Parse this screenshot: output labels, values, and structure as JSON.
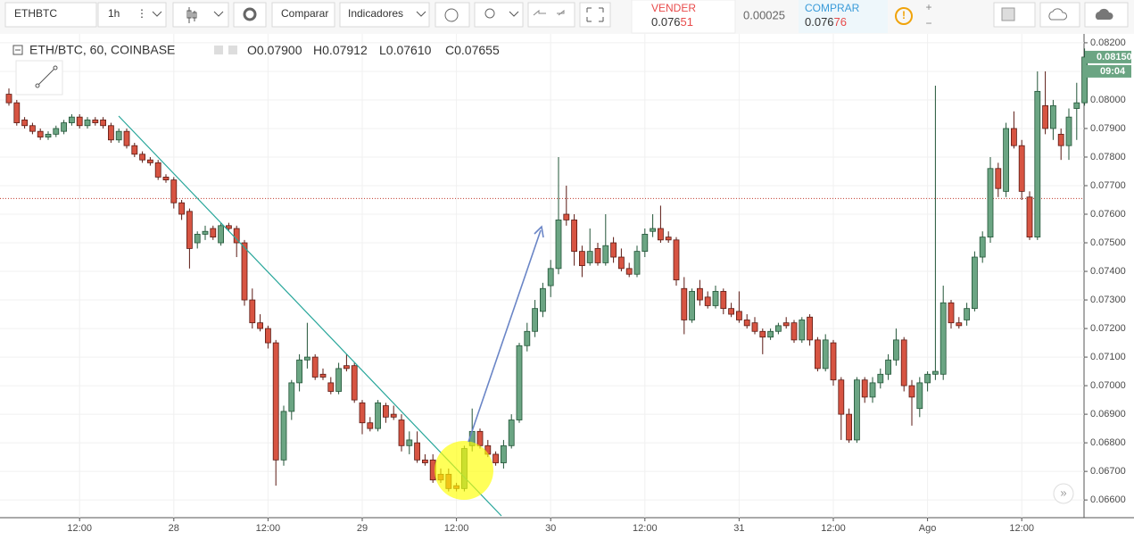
{
  "toolbar": {
    "symbol": "ETHBTC",
    "interval": "1h",
    "compare": "Comparar",
    "indicators": "Indicadores",
    "sell_label": "VENDER",
    "sell_price_main": "0.076",
    "sell_price_tail": "51",
    "spread": "0.00025",
    "buy_label": "COMPRAR",
    "buy_price_main": "0.076",
    "buy_price_tail": "76"
  },
  "legend": {
    "title": "ETH/BTC, 60, COINBASE",
    "items": [
      {
        "key": "O",
        "value": "0.07900"
      },
      {
        "key": "H",
        "value": "0.07912"
      },
      {
        "key": "L",
        "value": "0.07610"
      },
      {
        "key": "C",
        "value": "0.07655"
      }
    ]
  },
  "chart_data": {
    "type": "candlestick",
    "up_color": "#6ba583",
    "down_color": "#d75442",
    "ylim": [
      0.06538,
      0.08231
    ],
    "yticks": [
      {
        "value": 0.066,
        "label": "0.06600"
      },
      {
        "value": 0.067,
        "label": "0.06700"
      },
      {
        "value": 0.068,
        "label": "0.06800"
      },
      {
        "value": 0.069,
        "label": "0.06900"
      },
      {
        "value": 0.07,
        "label": "0.07000"
      },
      {
        "value": 0.071,
        "label": "0.07100"
      },
      {
        "value": 0.072,
        "label": "0.07200"
      },
      {
        "value": 0.073,
        "label": "0.07300"
      },
      {
        "value": 0.074,
        "label": "0.07400"
      },
      {
        "value": 0.075,
        "label": "0.07500"
      },
      {
        "value": 0.076,
        "label": "0.07600"
      },
      {
        "value": 0.077,
        "label": "0.07700"
      },
      {
        "value": 0.078,
        "label": "0.07800"
      },
      {
        "value": 0.079,
        "label": "0.07900"
      },
      {
        "value": 0.08,
        "label": "0.08000"
      },
      {
        "value": 0.081,
        "label": "0.08100"
      },
      {
        "value": 0.082,
        "label": "0.08200"
      }
    ],
    "xticks": [
      {
        "value": 9,
        "label": "12:00"
      },
      {
        "value": 21,
        "label": "28"
      },
      {
        "value": 33,
        "label": "12:00"
      },
      {
        "value": 45,
        "label": "29"
      },
      {
        "value": 57,
        "label": "12:00"
      },
      {
        "value": 69,
        "label": "30"
      },
      {
        "value": 81,
        "label": "12:00"
      },
      {
        "value": 93,
        "label": "31"
      },
      {
        "value": 105,
        "label": "12:00"
      },
      {
        "value": 117,
        "label": "Ago"
      },
      {
        "value": 129,
        "label": "12:00"
      }
    ],
    "price_line": 0.07655,
    "last_price": 0.0815,
    "last_price_label": "0.08150",
    "countdown": "09:04",
    "candles": [
      [
        0.0802,
        0.0804,
        0.0798,
        0.0799
      ],
      [
        0.0799,
        0.08,
        0.0791,
        0.0792
      ],
      [
        0.0793,
        0.0794,
        0.079,
        0.0791
      ],
      [
        0.0791,
        0.0792,
        0.0788,
        0.0789
      ],
      [
        0.0789,
        0.079,
        0.0786,
        0.0787
      ],
      [
        0.0787,
        0.0789,
        0.0786,
        0.0788
      ],
      [
        0.0788,
        0.0791,
        0.0787,
        0.079
      ],
      [
        0.0789,
        0.0793,
        0.0788,
        0.0792
      ],
      [
        0.0792,
        0.0795,
        0.0791,
        0.0794
      ],
      [
        0.0794,
        0.0795,
        0.079,
        0.0791
      ],
      [
        0.0791,
        0.0794,
        0.079,
        0.0793
      ],
      [
        0.0793,
        0.0794,
        0.0791,
        0.0792
      ],
      [
        0.0793,
        0.0794,
        0.079,
        0.0791
      ],
      [
        0.0791,
        0.0792,
        0.0785,
        0.0786
      ],
      [
        0.0786,
        0.079,
        0.0785,
        0.0789
      ],
      [
        0.0789,
        0.079,
        0.0783,
        0.0784
      ],
      [
        0.0784,
        0.0785,
        0.078,
        0.0781
      ],
      [
        0.0781,
        0.0782,
        0.0778,
        0.0779
      ],
      [
        0.0779,
        0.078,
        0.0777,
        0.0778
      ],
      [
        0.0778,
        0.0779,
        0.0772,
        0.0773
      ],
      [
        0.0773,
        0.0774,
        0.0771,
        0.0772
      ],
      [
        0.0772,
        0.0773,
        0.0762,
        0.0764
      ],
      [
        0.0764,
        0.0765,
        0.0758,
        0.076
      ],
      [
        0.0761,
        0.0762,
        0.0741,
        0.0748
      ],
      [
        0.075,
        0.0754,
        0.0748,
        0.0753
      ],
      [
        0.0753,
        0.0756,
        0.0751,
        0.0754
      ],
      [
        0.0755,
        0.0756,
        0.0751,
        0.0752
      ],
      [
        0.075,
        0.0757,
        0.0749,
        0.0756
      ],
      [
        0.0756,
        0.0757,
        0.0754,
        0.0755
      ],
      [
        0.0755,
        0.0756,
        0.0745,
        0.075
      ],
      [
        0.075,
        0.0751,
        0.0728,
        0.073
      ],
      [
        0.073,
        0.0734,
        0.072,
        0.0722
      ],
      [
        0.0722,
        0.0725,
        0.0719,
        0.072
      ],
      [
        0.072,
        0.0721,
        0.0713,
        0.0715
      ],
      [
        0.0715,
        0.0716,
        0.0665,
        0.0674
      ],
      [
        0.0674,
        0.0693,
        0.0672,
        0.0691
      ],
      [
        0.0691,
        0.0702,
        0.0688,
        0.0701
      ],
      [
        0.0701,
        0.0711,
        0.0698,
        0.0709
      ],
      [
        0.0709,
        0.0722,
        0.0706,
        0.071
      ],
      [
        0.071,
        0.0711,
        0.0702,
        0.0703
      ],
      [
        0.0704,
        0.0706,
        0.0702,
        0.0703
      ],
      [
        0.0701,
        0.0703,
        0.0697,
        0.0698
      ],
      [
        0.0698,
        0.0708,
        0.0697,
        0.0706
      ],
      [
        0.0707,
        0.0711,
        0.0705,
        0.0706
      ],
      [
        0.0707,
        0.0708,
        0.0694,
        0.0695
      ],
      [
        0.0694,
        0.0695,
        0.0683,
        0.0687
      ],
      [
        0.0687,
        0.0689,
        0.0684,
        0.0685
      ],
      [
        0.0685,
        0.0695,
        0.0684,
        0.0694
      ],
      [
        0.0693,
        0.0694,
        0.0687,
        0.0689
      ],
      [
        0.069,
        0.0693,
        0.0688,
        0.0689
      ],
      [
        0.0688,
        0.069,
        0.0677,
        0.0679
      ],
      [
        0.0679,
        0.0684,
        0.0676,
        0.0681
      ],
      [
        0.068,
        0.0684,
        0.0673,
        0.0674
      ],
      [
        0.0674,
        0.0676,
        0.0672,
        0.0673
      ],
      [
        0.0674,
        0.0676,
        0.0666,
        0.0667
      ],
      [
        0.0669,
        0.0671,
        0.0666,
        0.0667
      ],
      [
        0.0669,
        0.0671,
        0.0663,
        0.0664
      ],
      [
        0.0665,
        0.0666,
        0.0663,
        0.0664
      ],
      [
        0.0664,
        0.0679,
        0.0663,
        0.0678
      ],
      [
        0.0679,
        0.0692,
        0.0677,
        0.0684
      ],
      [
        0.0684,
        0.0685,
        0.0678,
        0.0679
      ],
      [
        0.0679,
        0.0681,
        0.0675,
        0.0676
      ],
      [
        0.0676,
        0.0677,
        0.0672,
        0.0673
      ],
      [
        0.0673,
        0.0681,
        0.0671,
        0.0679
      ],
      [
        0.0679,
        0.069,
        0.0678,
        0.0688
      ],
      [
        0.0688,
        0.0715,
        0.0687,
        0.0714
      ],
      [
        0.0714,
        0.0722,
        0.0712,
        0.0719
      ],
      [
        0.0719,
        0.073,
        0.0717,
        0.0727
      ],
      [
        0.0726,
        0.0736,
        0.0724,
        0.0734
      ],
      [
        0.0735,
        0.0744,
        0.0731,
        0.0741
      ],
      [
        0.0741,
        0.078,
        0.0739,
        0.0758
      ],
      [
        0.076,
        0.077,
        0.0756,
        0.0758
      ],
      [
        0.0758,
        0.076,
        0.0742,
        0.0747
      ],
      [
        0.0747,
        0.0749,
        0.0738,
        0.0742
      ],
      [
        0.0743,
        0.0755,
        0.0742,
        0.0747
      ],
      [
        0.0748,
        0.075,
        0.0742,
        0.0743
      ],
      [
        0.0743,
        0.076,
        0.0742,
        0.0749
      ],
      [
        0.075,
        0.0752,
        0.0743,
        0.0745
      ],
      [
        0.0745,
        0.0748,
        0.074,
        0.0741
      ],
      [
        0.0741,
        0.0743,
        0.0738,
        0.0739
      ],
      [
        0.0739,
        0.0749,
        0.0738,
        0.0747
      ],
      [
        0.0747,
        0.0755,
        0.0745,
        0.0753
      ],
      [
        0.0754,
        0.076,
        0.0752,
        0.0755
      ],
      [
        0.0755,
        0.0763,
        0.075,
        0.0751
      ],
      [
        0.0752,
        0.0754,
        0.075,
        0.0751
      ],
      [
        0.0751,
        0.0752,
        0.0735,
        0.0737
      ],
      [
        0.0734,
        0.0738,
        0.0718,
        0.0723
      ],
      [
        0.0723,
        0.0734,
        0.0722,
        0.0733
      ],
      [
        0.0734,
        0.0737,
        0.0728,
        0.073
      ],
      [
        0.0731,
        0.0733,
        0.0727,
        0.0728
      ],
      [
        0.0728,
        0.0735,
        0.0727,
        0.0733
      ],
      [
        0.0733,
        0.0734,
        0.0725,
        0.0727
      ],
      [
        0.0727,
        0.0729,
        0.0724,
        0.0725
      ],
      [
        0.0726,
        0.0733,
        0.0722,
        0.0723
      ],
      [
        0.0723,
        0.0725,
        0.072,
        0.0721
      ],
      [
        0.0722,
        0.0724,
        0.0718,
        0.0719
      ],
      [
        0.0719,
        0.072,
        0.0711,
        0.0717
      ],
      [
        0.0717,
        0.072,
        0.0716,
        0.0719
      ],
      [
        0.0719,
        0.0722,
        0.0718,
        0.0721
      ],
      [
        0.0722,
        0.0724,
        0.072,
        0.0721
      ],
      [
        0.0722,
        0.0723,
        0.0715,
        0.0716
      ],
      [
        0.0716,
        0.0724,
        0.0715,
        0.0723
      ],
      [
        0.0724,
        0.0725,
        0.0714,
        0.0716
      ],
      [
        0.0716,
        0.0717,
        0.0705,
        0.0706
      ],
      [
        0.0706,
        0.0718,
        0.0705,
        0.0716
      ],
      [
        0.0715,
        0.0716,
        0.07,
        0.0702
      ],
      [
        0.0702,
        0.0703,
        0.0681,
        0.069
      ],
      [
        0.069,
        0.0692,
        0.068,
        0.0681
      ],
      [
        0.0681,
        0.0703,
        0.068,
        0.0702
      ],
      [
        0.0702,
        0.0703,
        0.0694,
        0.0696
      ],
      [
        0.0696,
        0.0703,
        0.0694,
        0.0701
      ],
      [
        0.0701,
        0.0706,
        0.0699,
        0.0704
      ],
      [
        0.0704,
        0.0711,
        0.0702,
        0.0709
      ],
      [
        0.0709,
        0.072,
        0.0707,
        0.0716
      ],
      [
        0.0716,
        0.0717,
        0.0698,
        0.07
      ],
      [
        0.07,
        0.0702,
        0.0686,
        0.0696
      ],
      [
        0.0692,
        0.0703,
        0.0689,
        0.0701
      ],
      [
        0.0701,
        0.0705,
        0.0698,
        0.0704
      ],
      [
        0.0704,
        0.0805,
        0.0702,
        0.0705
      ],
      [
        0.0704,
        0.0735,
        0.0702,
        0.0729
      ],
      [
        0.0729,
        0.073,
        0.072,
        0.0722
      ],
      [
        0.0722,
        0.0724,
        0.072,
        0.0721
      ],
      [
        0.0723,
        0.0729,
        0.0721,
        0.0727
      ],
      [
        0.0727,
        0.0747,
        0.0726,
        0.0745
      ],
      [
        0.0745,
        0.0754,
        0.0743,
        0.0752
      ],
      [
        0.0752,
        0.078,
        0.075,
        0.0776
      ],
      [
        0.0776,
        0.0778,
        0.0766,
        0.0769
      ],
      [
        0.0768,
        0.0792,
        0.0766,
        0.079
      ],
      [
        0.079,
        0.0796,
        0.0783,
        0.0784
      ],
      [
        0.0784,
        0.0786,
        0.0765,
        0.0768
      ],
      [
        0.0766,
        0.0768,
        0.0751,
        0.0752
      ],
      [
        0.0752,
        0.081,
        0.0751,
        0.0803
      ],
      [
        0.0798,
        0.081,
        0.0788,
        0.079
      ],
      [
        0.079,
        0.08,
        0.0786,
        0.0798
      ],
      [
        0.0788,
        0.079,
        0.0779,
        0.0784
      ],
      [
        0.0784,
        0.0797,
        0.0779,
        0.0794
      ],
      [
        0.0797,
        0.0806,
        0.0786,
        0.0799
      ],
      [
        0.0799,
        0.0818,
        0.0798,
        0.0815
      ]
    ]
  }
}
